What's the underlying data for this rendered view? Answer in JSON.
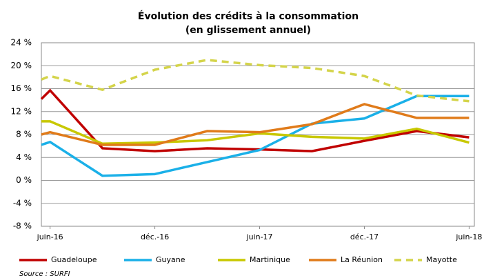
{
  "chart_data": {
    "type": "line",
    "title": [
      "Évolution des crédits à la consommation",
      "(en glissement annuel)"
    ],
    "source": "Source : SURFI",
    "x": [
      -0.5,
      0,
      3,
      6,
      9,
      12,
      15,
      18,
      21,
      24
    ],
    "xlim": [
      -0.5,
      24.3
    ],
    "xticks": [
      {
        "value": 0,
        "label": "juin-16"
      },
      {
        "value": 6,
        "label": "déc.-16"
      },
      {
        "value": 12,
        "label": "juin-17"
      },
      {
        "value": 18,
        "label": "déc.-17"
      },
      {
        "value": 24,
        "label": "juin-18"
      }
    ],
    "ylim": [
      -8,
      24
    ],
    "yticks": [
      {
        "value": -8,
        "label": "-8 %"
      },
      {
        "value": -4,
        "label": "-4 %"
      },
      {
        "value": 0,
        "label": "0 %"
      },
      {
        "value": 4,
        "label": "4 %"
      },
      {
        "value": 8,
        "label": "8 %"
      },
      {
        "value": 12,
        "label": "12 %"
      },
      {
        "value": 16,
        "label": "16 %"
      },
      {
        "value": 20,
        "label": "20 %"
      },
      {
        "value": 24,
        "label": "24 %"
      }
    ],
    "grid": true,
    "legend": "bottom",
    "series": [
      {
        "name": "Guadeloupe",
        "color": "#c00000",
        "dashed": false,
        "values": [
          14.2,
          15.7,
          5.6,
          5.1,
          5.6,
          5.4,
          5.1,
          6.9,
          8.6,
          7.5
        ]
      },
      {
        "name": "Guyane",
        "color": "#1ab0e8",
        "dashed": false,
        "values": [
          6.2,
          6.7,
          0.8,
          1.1,
          3.2,
          5.3,
          9.9,
          10.8,
          14.7,
          14.7
        ]
      },
      {
        "name": "Martinique",
        "color": "#c8c800",
        "dashed": false,
        "values": [
          10.3,
          10.3,
          6.4,
          6.6,
          7.0,
          8.2,
          7.6,
          7.3,
          9.0,
          6.6
        ]
      },
      {
        "name": "La Réunion",
        "color": "#e07b1a",
        "dashed": false,
        "values": [
          8.0,
          8.4,
          6.2,
          6.2,
          8.6,
          8.4,
          9.8,
          13.3,
          10.9,
          10.9
        ]
      },
      {
        "name": "Mayotte",
        "color": "#d4d44a",
        "dashed": true,
        "values": [
          17.6,
          18.2,
          15.8,
          19.3,
          21.0,
          20.1,
          19.6,
          18.2,
          14.8,
          13.8
        ]
      }
    ]
  }
}
